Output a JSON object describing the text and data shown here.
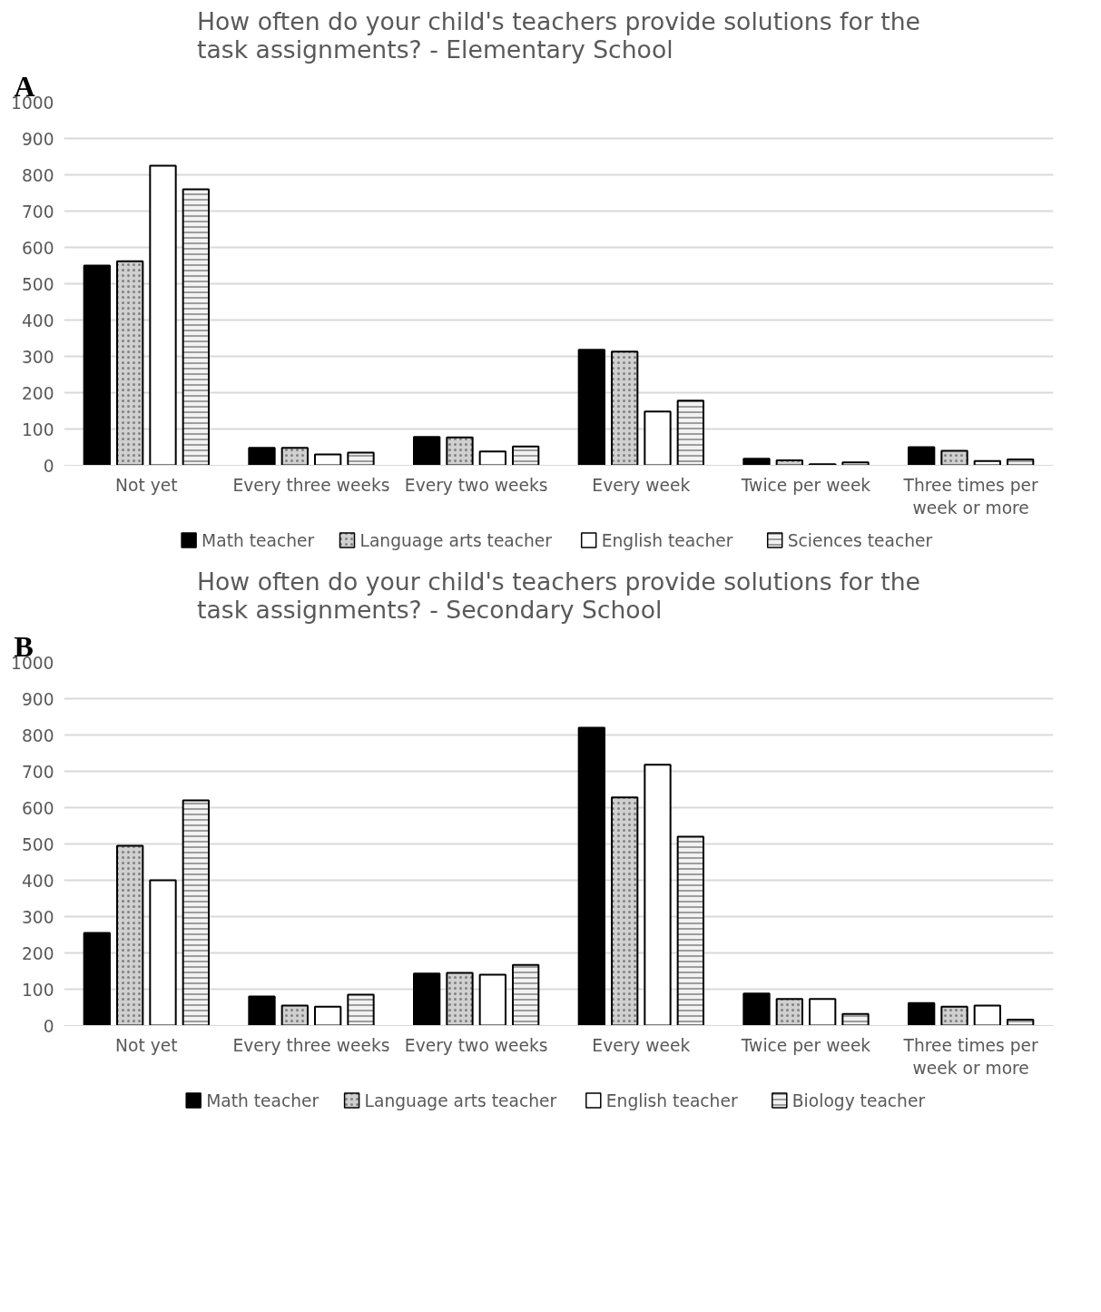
{
  "chart_data": [
    {
      "type": "bar",
      "title": "How often do your child's teachers provide solutions for the task assignments? - Elementary School",
      "annotations": [
        "A"
      ],
      "categories": [
        "Not yet",
        "Every three weeks",
        "Every two weeks",
        "Every week",
        "Twice per week",
        "Three times per week or more"
      ],
      "ylim": [
        0,
        1000
      ],
      "yticks": [
        0,
        100,
        200,
        300,
        400,
        500,
        600,
        700,
        800,
        900,
        1000
      ],
      "grid": "y",
      "legend": "bottom",
      "series": [
        {
          "name": "Math teacher",
          "color": "#000000",
          "values": [
            550,
            48,
            78,
            318,
            18,
            50
          ]
        },
        {
          "name": "Language arts teacher",
          "color": "#d0d0d0",
          "values": [
            562,
            48,
            77,
            313,
            14,
            40
          ]
        },
        {
          "name": "English teacher",
          "color": "#ffffff",
          "values": [
            825,
            30,
            38,
            148,
            3,
            12
          ]
        },
        {
          "name": "Sciences teacher",
          "color": "#f2f2f2",
          "values": [
            760,
            35,
            52,
            178,
            8,
            16
          ]
        }
      ]
    },
    {
      "type": "bar",
      "title": "How often do your child's teachers provide solutions for the task assignments? - Secondary School",
      "annotations": [
        "B"
      ],
      "categories": [
        "Not yet",
        "Every three weeks",
        "Every two weeks",
        "Every week",
        "Twice per week",
        "Three times per week or more"
      ],
      "ylim": [
        0,
        1000
      ],
      "yticks": [
        0,
        100,
        200,
        300,
        400,
        500,
        600,
        700,
        800,
        900,
        1000
      ],
      "grid": "y",
      "legend": "bottom",
      "series": [
        {
          "name": "Math teacher",
          "color": "#000000",
          "values": [
            255,
            80,
            143,
            820,
            88,
            62
          ]
        },
        {
          "name": "Language arts teacher",
          "color": "#d0d0d0",
          "values": [
            495,
            55,
            145,
            628,
            73,
            52
          ]
        },
        {
          "name": "English teacher",
          "color": "#ffffff",
          "values": [
            400,
            52,
            140,
            718,
            73,
            55
          ]
        },
        {
          "name": "Biology teacher",
          "color": "#f2f2f2",
          "values": [
            620,
            85,
            167,
            520,
            32,
            16
          ]
        }
      ]
    }
  ]
}
